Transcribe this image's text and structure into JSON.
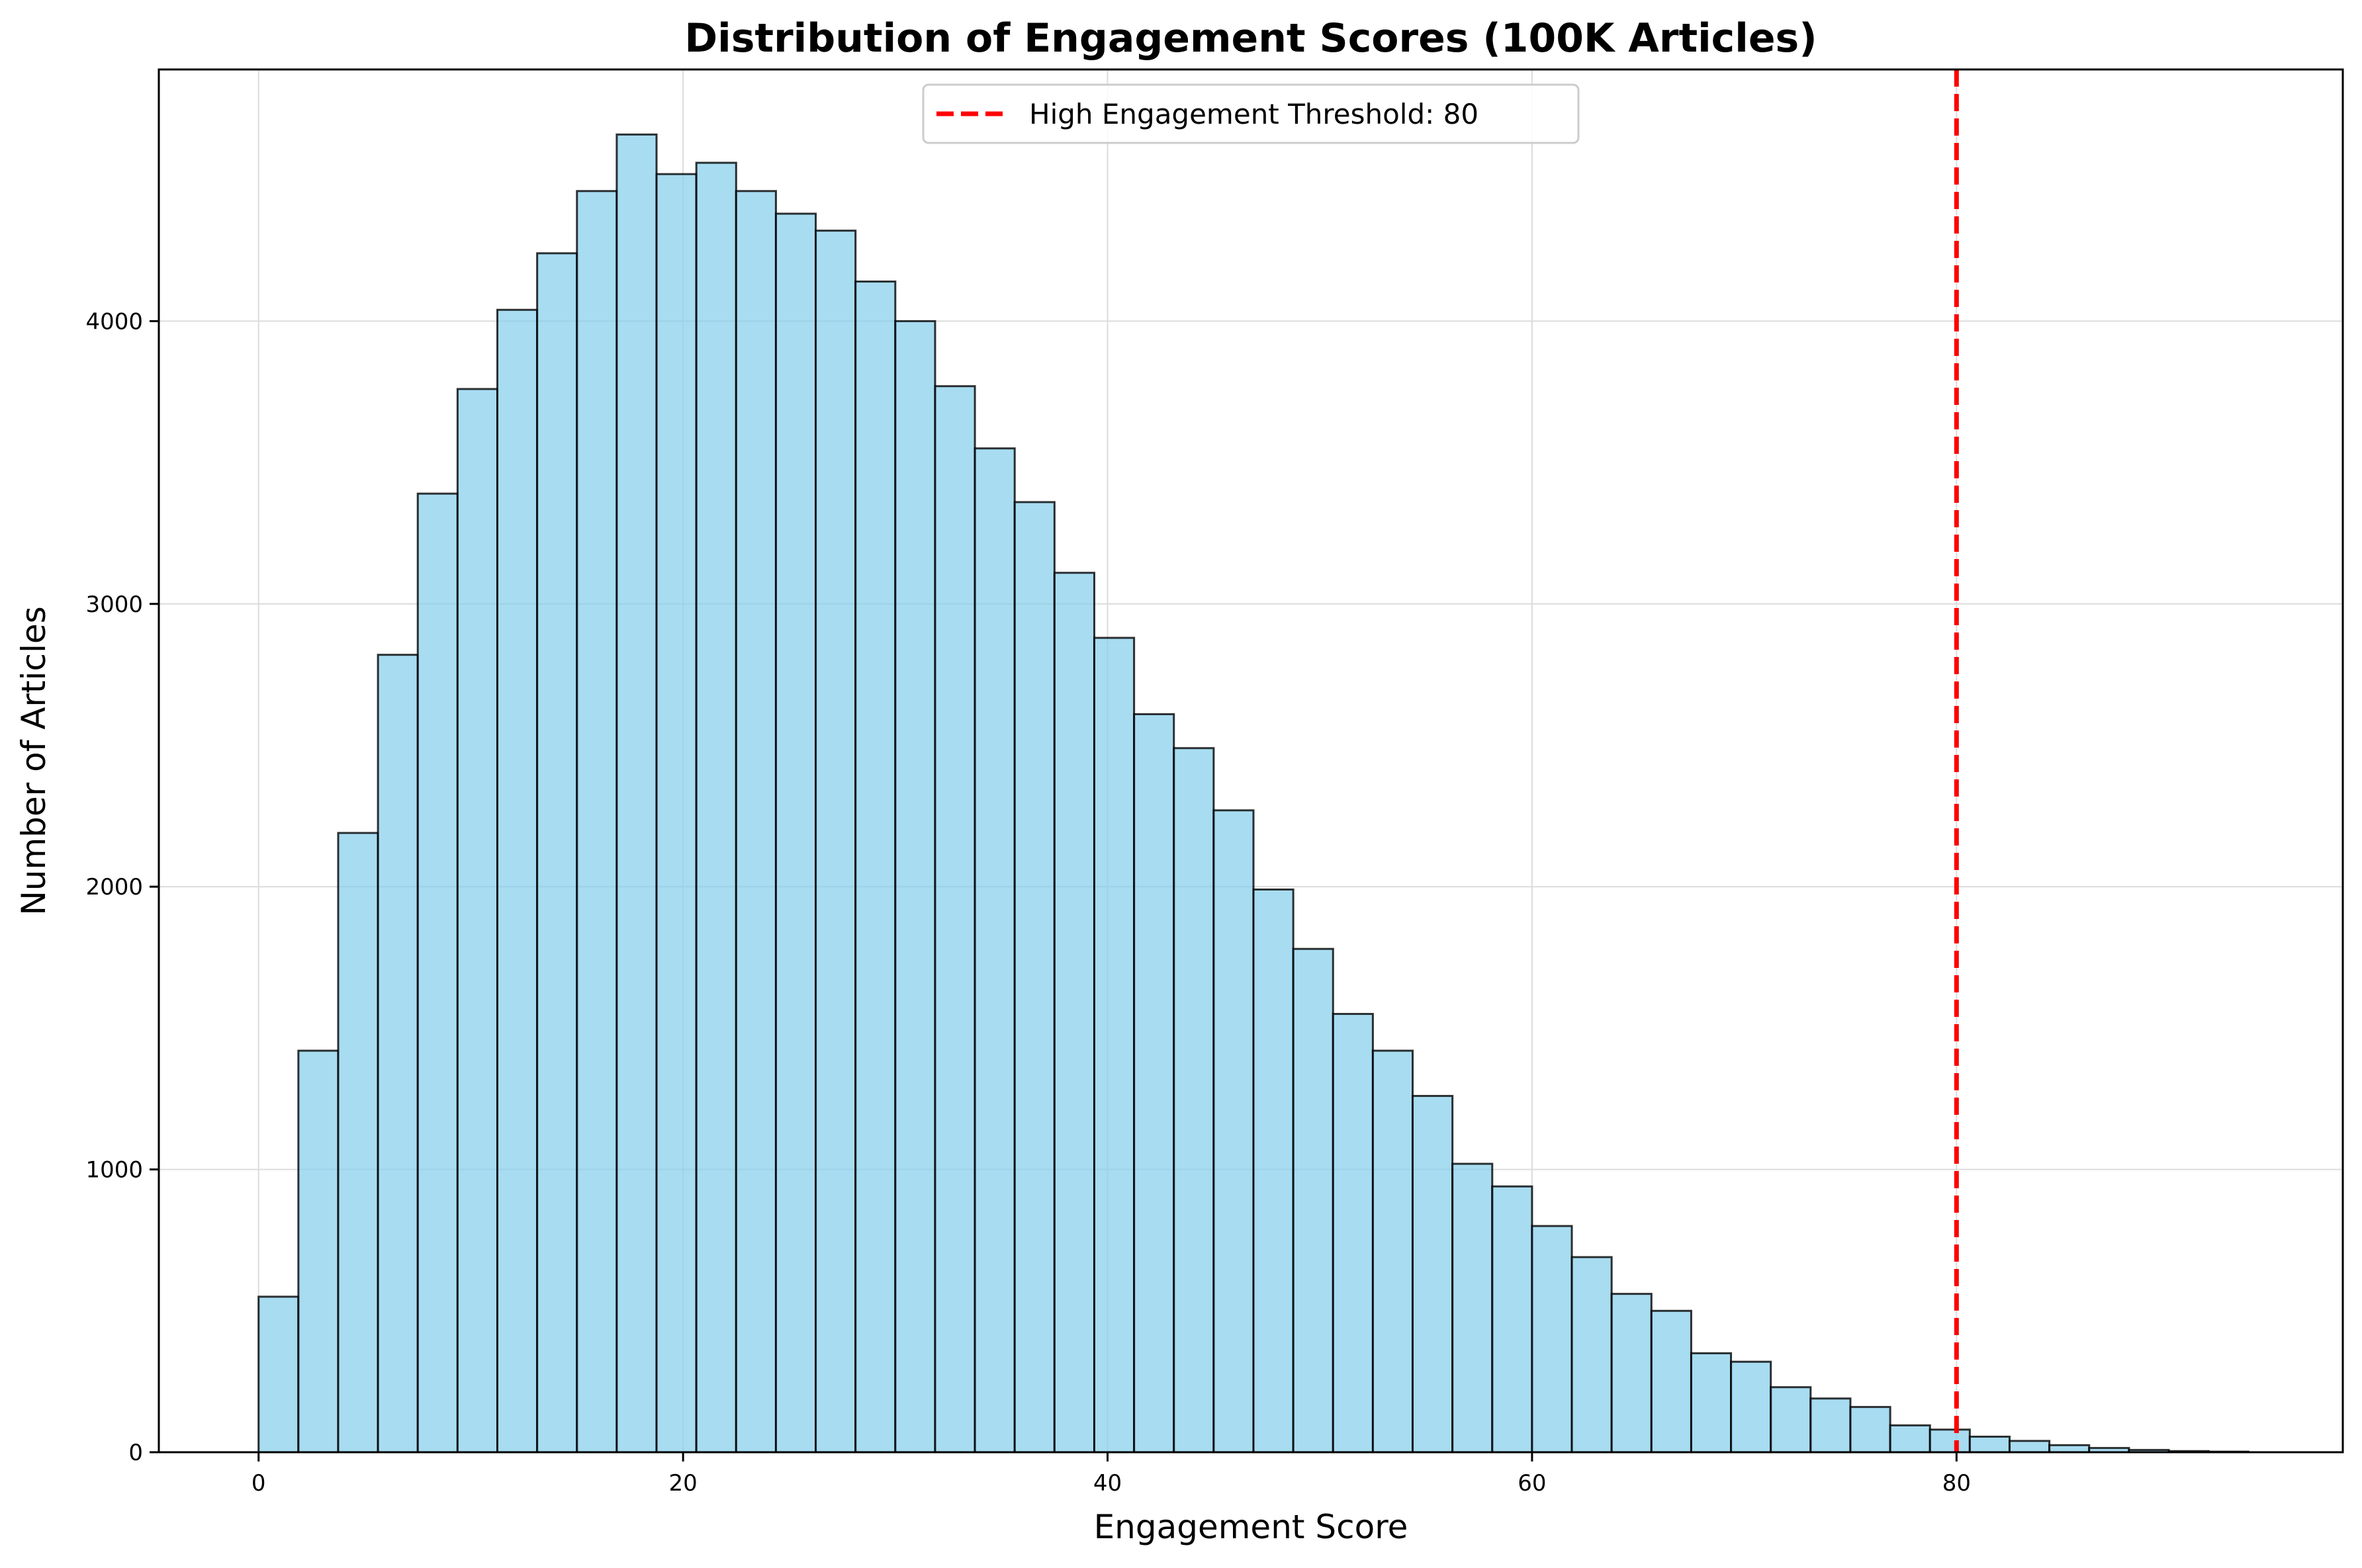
{
  "chart_data": {
    "type": "bar",
    "title": "Distribution of Engagement Scores (100K Articles)",
    "xlabel": "Engagement Score",
    "ylabel": "Number of Articles",
    "xlim": [
      -4.7,
      98.2
    ],
    "ylim": [
      0,
      4890
    ],
    "xticks": [
      0,
      20,
      40,
      60,
      80
    ],
    "yticks": [
      0,
      1000,
      2000,
      3000,
      4000
    ],
    "grid": true,
    "bar_color": "#87CEEB",
    "edge_color": "#000000",
    "bin_width": 1.875,
    "bin_start": 0,
    "values": [
      550,
      1420,
      2190,
      2820,
      3390,
      3760,
      4040,
      4240,
      4460,
      4660,
      4520,
      4560,
      4460,
      4380,
      4320,
      4140,
      4000,
      3770,
      3550,
      3360,
      3110,
      2880,
      2610,
      2490,
      2270,
      1990,
      1780,
      1550,
      1420,
      1260,
      1020,
      940,
      800,
      690,
      560,
      500,
      350,
      320,
      230,
      190,
      160,
      95,
      80,
      55,
      40,
      25,
      15,
      8,
      4,
      2
    ],
    "threshold": {
      "value": 80,
      "color": "#FF0000",
      "label": "High Engagement Threshold: 80"
    },
    "legend_position": "upper-center"
  }
}
